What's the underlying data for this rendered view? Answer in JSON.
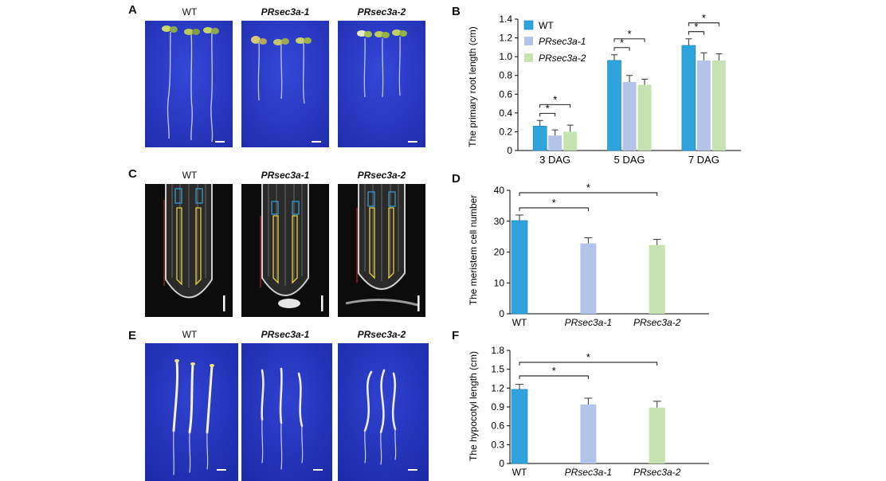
{
  "panels": {
    "A": {
      "letter": "A",
      "labels": [
        "WT",
        "PRsec3a-1",
        "PRsec3a-2"
      ]
    },
    "B": {
      "letter": "B"
    },
    "C": {
      "letter": "C",
      "labels": [
        "WT",
        "PRsec3a-1",
        "PRsec3a-2"
      ]
    },
    "D": {
      "letter": "D"
    },
    "E": {
      "letter": "E",
      "labels": [
        "WT",
        "PRsec3a-1",
        "PRsec3a-2"
      ]
    },
    "F": {
      "letter": "F"
    }
  },
  "colors": {
    "wt": "#2ea3dc",
    "sec1": "#b4c4e8",
    "sec2": "#c6e2b0",
    "plate": "#2a3bc8",
    "micro": "#0c0c0c"
  },
  "chart_data": [
    {
      "id": "B",
      "type": "bar",
      "categories": [
        "3 DAG",
        "5 DAG",
        "7 DAG"
      ],
      "series": [
        {
          "name": "WT",
          "values": [
            0.26,
            0.96,
            1.12
          ],
          "errors": [
            0.06,
            0.06,
            0.07
          ]
        },
        {
          "name": "PRsec3a-1",
          "values": [
            0.16,
            0.73,
            0.96
          ],
          "errors": [
            0.06,
            0.07,
            0.08
          ]
        },
        {
          "name": "PRsec3a-2",
          "values": [
            0.2,
            0.7,
            0.96
          ],
          "errors": [
            0.07,
            0.06,
            0.07
          ]
        }
      ],
      "ylabel": "The primary root length  (cm)",
      "ylim": [
        0,
        1.4
      ],
      "yticks": [
        "0",
        "0.2",
        "0.4",
        "0.6",
        "0.8",
        "1.0",
        "1.2",
        "1.4"
      ],
      "legend": "top-left",
      "significance_marker": "*"
    },
    {
      "id": "D",
      "type": "bar",
      "categories": [
        "WT",
        "PRsec3a-1",
        "PRsec3a-2"
      ],
      "values": [
        30.2,
        22.8,
        22.3
      ],
      "errors": [
        1.8,
        1.8,
        1.8
      ],
      "ylabel": "The meristem cell number",
      "ylim": [
        0,
        40
      ],
      "yticks": [
        "0",
        "10",
        "20",
        "30",
        "40"
      ],
      "significance_marker": "*"
    },
    {
      "id": "F",
      "type": "bar",
      "categories": [
        "WT",
        "PRsec3a-1",
        "PRsec3a-2"
      ],
      "values": [
        1.18,
        0.94,
        0.89
      ],
      "errors": [
        0.08,
        0.1,
        0.1
      ],
      "ylabel": "The hypocotyl length (cm)",
      "ylim": [
        0,
        1.8
      ],
      "yticks": [
        "0",
        "0.3",
        "0.6",
        "0.9",
        "1.2",
        "1.5",
        "1.8"
      ],
      "significance_marker": "*"
    }
  ]
}
